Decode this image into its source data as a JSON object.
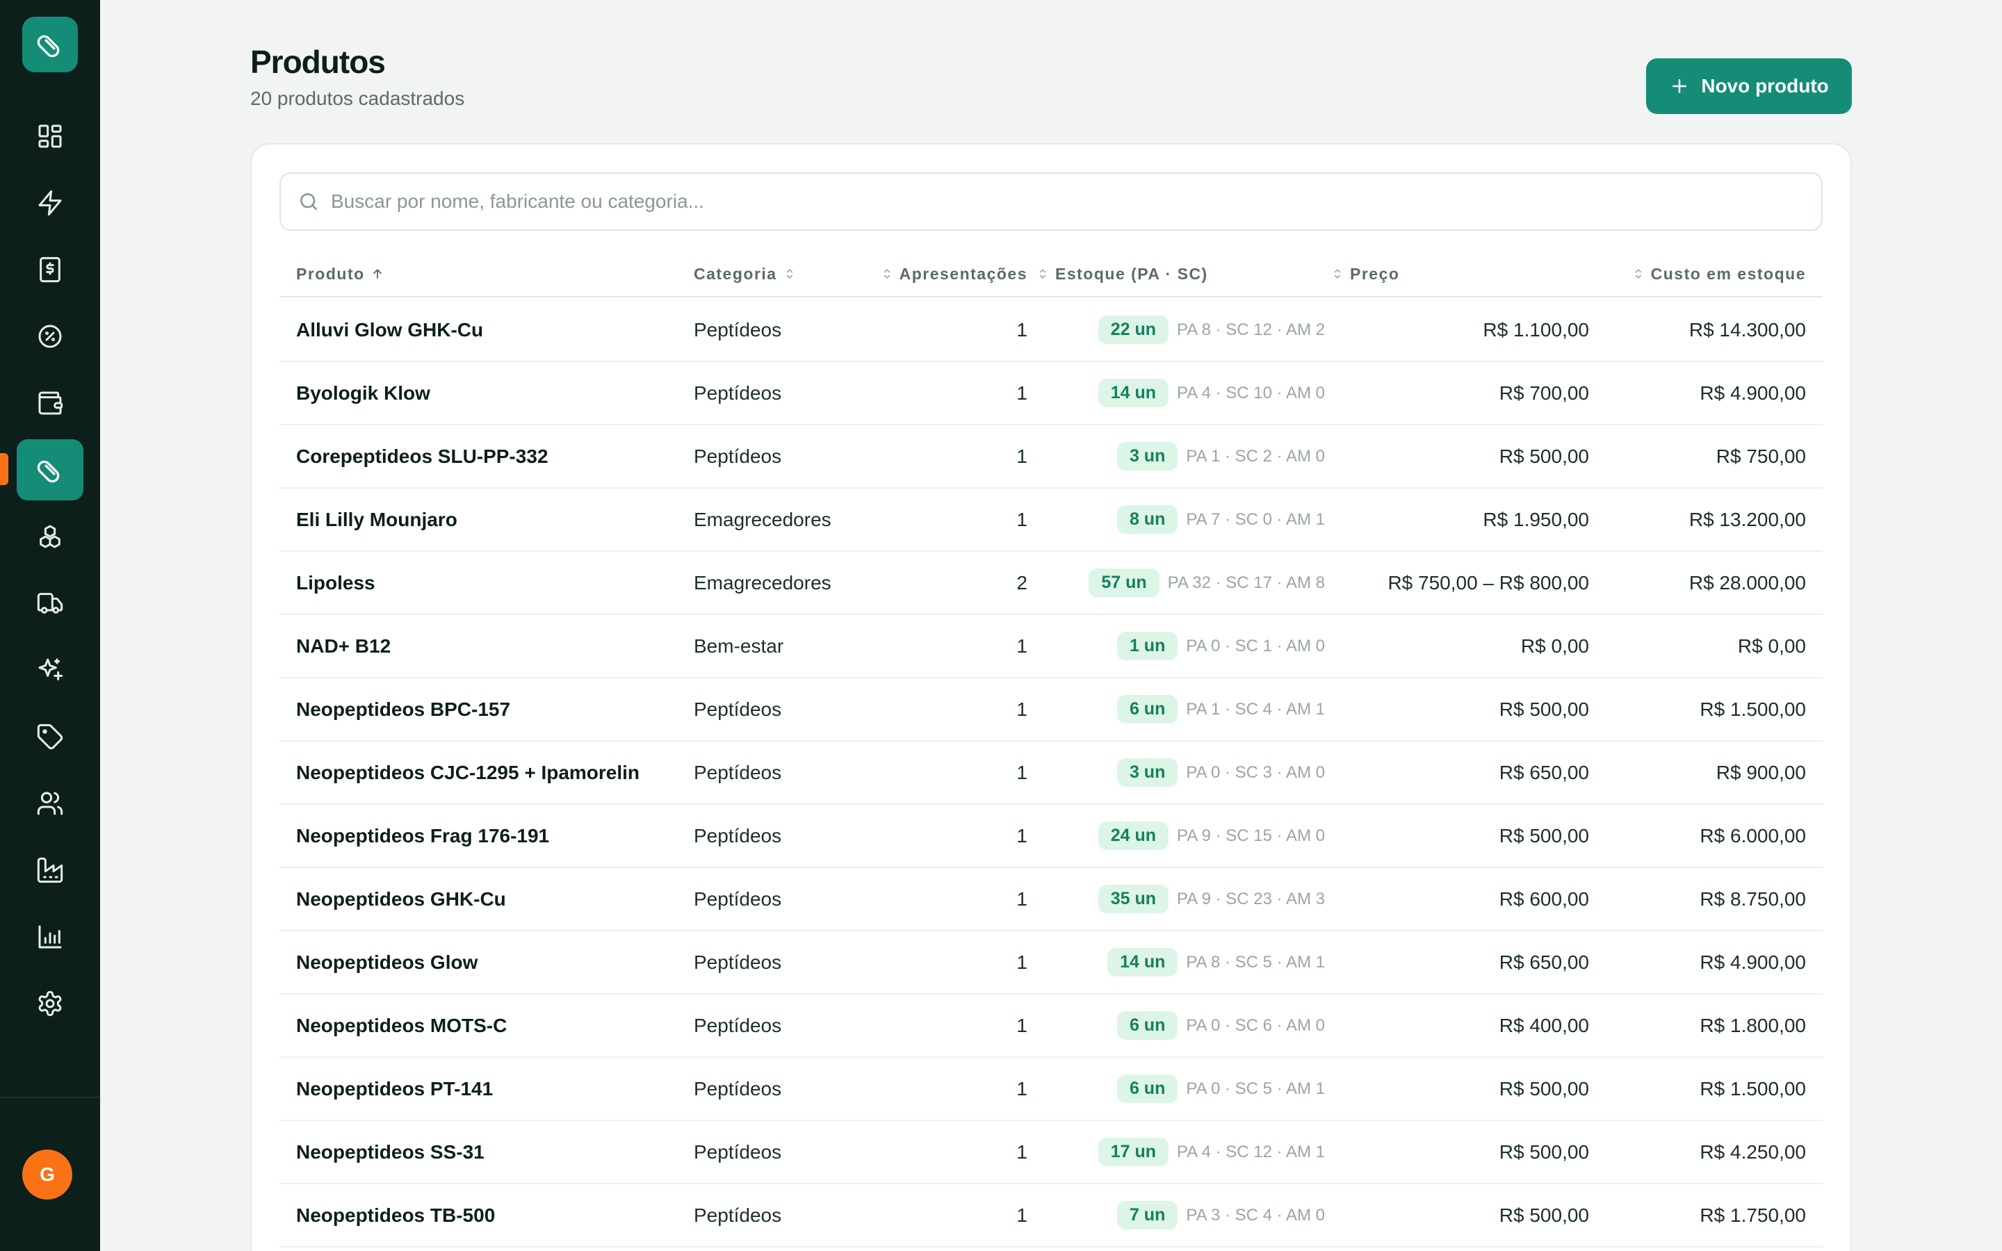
{
  "sidebar": {
    "logo_icon": "pill-icon",
    "items": [
      {
        "name": "dashboard",
        "icon": "grid-icon",
        "active": false
      },
      {
        "name": "quick-actions",
        "icon": "lightning-icon",
        "active": false
      },
      {
        "name": "billing",
        "icon": "receipt-icon",
        "active": false
      },
      {
        "name": "discounts",
        "icon": "discount-icon",
        "active": false
      },
      {
        "name": "wallet",
        "icon": "wallet-icon",
        "active": false
      },
      {
        "name": "products",
        "icon": "pill-icon",
        "active": true
      },
      {
        "name": "inventory",
        "icon": "boxes-icon",
        "active": false
      },
      {
        "name": "shipping",
        "icon": "truck-icon",
        "active": false
      },
      {
        "name": "highlights",
        "icon": "sparkles-icon",
        "active": false
      },
      {
        "name": "tags",
        "icon": "tag-icon",
        "active": false
      },
      {
        "name": "customers",
        "icon": "users-icon",
        "active": false
      },
      {
        "name": "suppliers",
        "icon": "factory-icon",
        "active": false
      },
      {
        "name": "reports",
        "icon": "bar-chart-icon",
        "active": false
      },
      {
        "name": "settings",
        "icon": "gear-icon",
        "active": false
      }
    ],
    "avatar_initial": "G"
  },
  "header": {
    "title": "Produtos",
    "subtitle": "20 produtos cadastrados",
    "new_button_label": "Novo produto"
  },
  "search": {
    "placeholder": "Buscar por nome, fabricante ou categoria...",
    "value": ""
  },
  "table": {
    "columns": {
      "produto": "Produto",
      "categoria": "Categoria",
      "apresentacoes": "Apresentações",
      "estoque": "Estoque (PA · SC)",
      "preco": "Preço",
      "custo": "Custo em estoque"
    },
    "rows": [
      {
        "name": "Alluvi Glow GHK-Cu",
        "category": "Peptídeos",
        "presentations": "1",
        "stock": "22 un",
        "breakdown": "PA 8 · SC 12 · AM 2",
        "price": "R$ 1.100,00",
        "cost": "R$ 14.300,00"
      },
      {
        "name": "Byologik Klow",
        "category": "Peptídeos",
        "presentations": "1",
        "stock": "14 un",
        "breakdown": "PA 4 · SC 10 · AM 0",
        "price": "R$ 700,00",
        "cost": "R$ 4.900,00"
      },
      {
        "name": "Corepeptideos SLU-PP-332",
        "category": "Peptídeos",
        "presentations": "1",
        "stock": "3 un",
        "breakdown": "PA 1 · SC 2 · AM 0",
        "price": "R$ 500,00",
        "cost": "R$ 750,00"
      },
      {
        "name": "Eli Lilly Mounjaro",
        "category": "Emagrecedores",
        "presentations": "1",
        "stock": "8 un",
        "breakdown": "PA 7 · SC 0 · AM 1",
        "price": "R$ 1.950,00",
        "cost": "R$ 13.200,00"
      },
      {
        "name": "Lipoless",
        "category": "Emagrecedores",
        "presentations": "2",
        "stock": "57 un",
        "breakdown": "PA 32 · SC 17 · AM 8",
        "price": "R$ 750,00 – R$ 800,00",
        "cost": "R$ 28.000,00"
      },
      {
        "name": "NAD+ B12",
        "category": "Bem-estar",
        "presentations": "1",
        "stock": "1 un",
        "breakdown": "PA 0 · SC 1 · AM 0",
        "price": "R$ 0,00",
        "cost": "R$ 0,00"
      },
      {
        "name": "Neopeptideos BPC-157",
        "category": "Peptídeos",
        "presentations": "1",
        "stock": "6 un",
        "breakdown": "PA 1 · SC 4 · AM 1",
        "price": "R$ 500,00",
        "cost": "R$ 1.500,00"
      },
      {
        "name": "Neopeptideos CJC-1295 + Ipamorelin",
        "category": "Peptídeos",
        "presentations": "1",
        "stock": "3 un",
        "breakdown": "PA 0 · SC 3 · AM 0",
        "price": "R$ 650,00",
        "cost": "R$ 900,00"
      },
      {
        "name": "Neopeptideos Frag 176-191",
        "category": "Peptídeos",
        "presentations": "1",
        "stock": "24 un",
        "breakdown": "PA 9 · SC 15 · AM 0",
        "price": "R$ 500,00",
        "cost": "R$ 6.000,00"
      },
      {
        "name": "Neopeptideos GHK-Cu",
        "category": "Peptídeos",
        "presentations": "1",
        "stock": "35 un",
        "breakdown": "PA 9 · SC 23 · AM 3",
        "price": "R$ 600,00",
        "cost": "R$ 8.750,00"
      },
      {
        "name": "Neopeptideos Glow",
        "category": "Peptídeos",
        "presentations": "1",
        "stock": "14 un",
        "breakdown": "PA 8 · SC 5 · AM 1",
        "price": "R$ 650,00",
        "cost": "R$ 4.900,00"
      },
      {
        "name": "Neopeptideos MOTS-C",
        "category": "Peptídeos",
        "presentations": "1",
        "stock": "6 un",
        "breakdown": "PA 0 · SC 6 · AM 0",
        "price": "R$ 400,00",
        "cost": "R$ 1.800,00"
      },
      {
        "name": "Neopeptideos PT-141",
        "category": "Peptídeos",
        "presentations": "1",
        "stock": "6 un",
        "breakdown": "PA 0 · SC 5 · AM 1",
        "price": "R$ 500,00",
        "cost": "R$ 1.500,00"
      },
      {
        "name": "Neopeptideos SS-31",
        "category": "Peptídeos",
        "presentations": "1",
        "stock": "17 un",
        "breakdown": "PA 4 · SC 12 · AM 1",
        "price": "R$ 500,00",
        "cost": "R$ 4.250,00"
      },
      {
        "name": "Neopeptideos TB-500",
        "category": "Peptídeos",
        "presentations": "1",
        "stock": "7 un",
        "breakdown": "PA 3 · SC 4 · AM 0",
        "price": "R$ 500,00",
        "cost": "R$ 1.750,00"
      }
    ]
  },
  "colors": {
    "sidebar_bg": "#0d1f1b",
    "accent": "#148c76",
    "active_marker": "#f97316",
    "avatar": "#f97316",
    "badge_bg": "#dcf5e7",
    "badge_text": "#13805f"
  }
}
